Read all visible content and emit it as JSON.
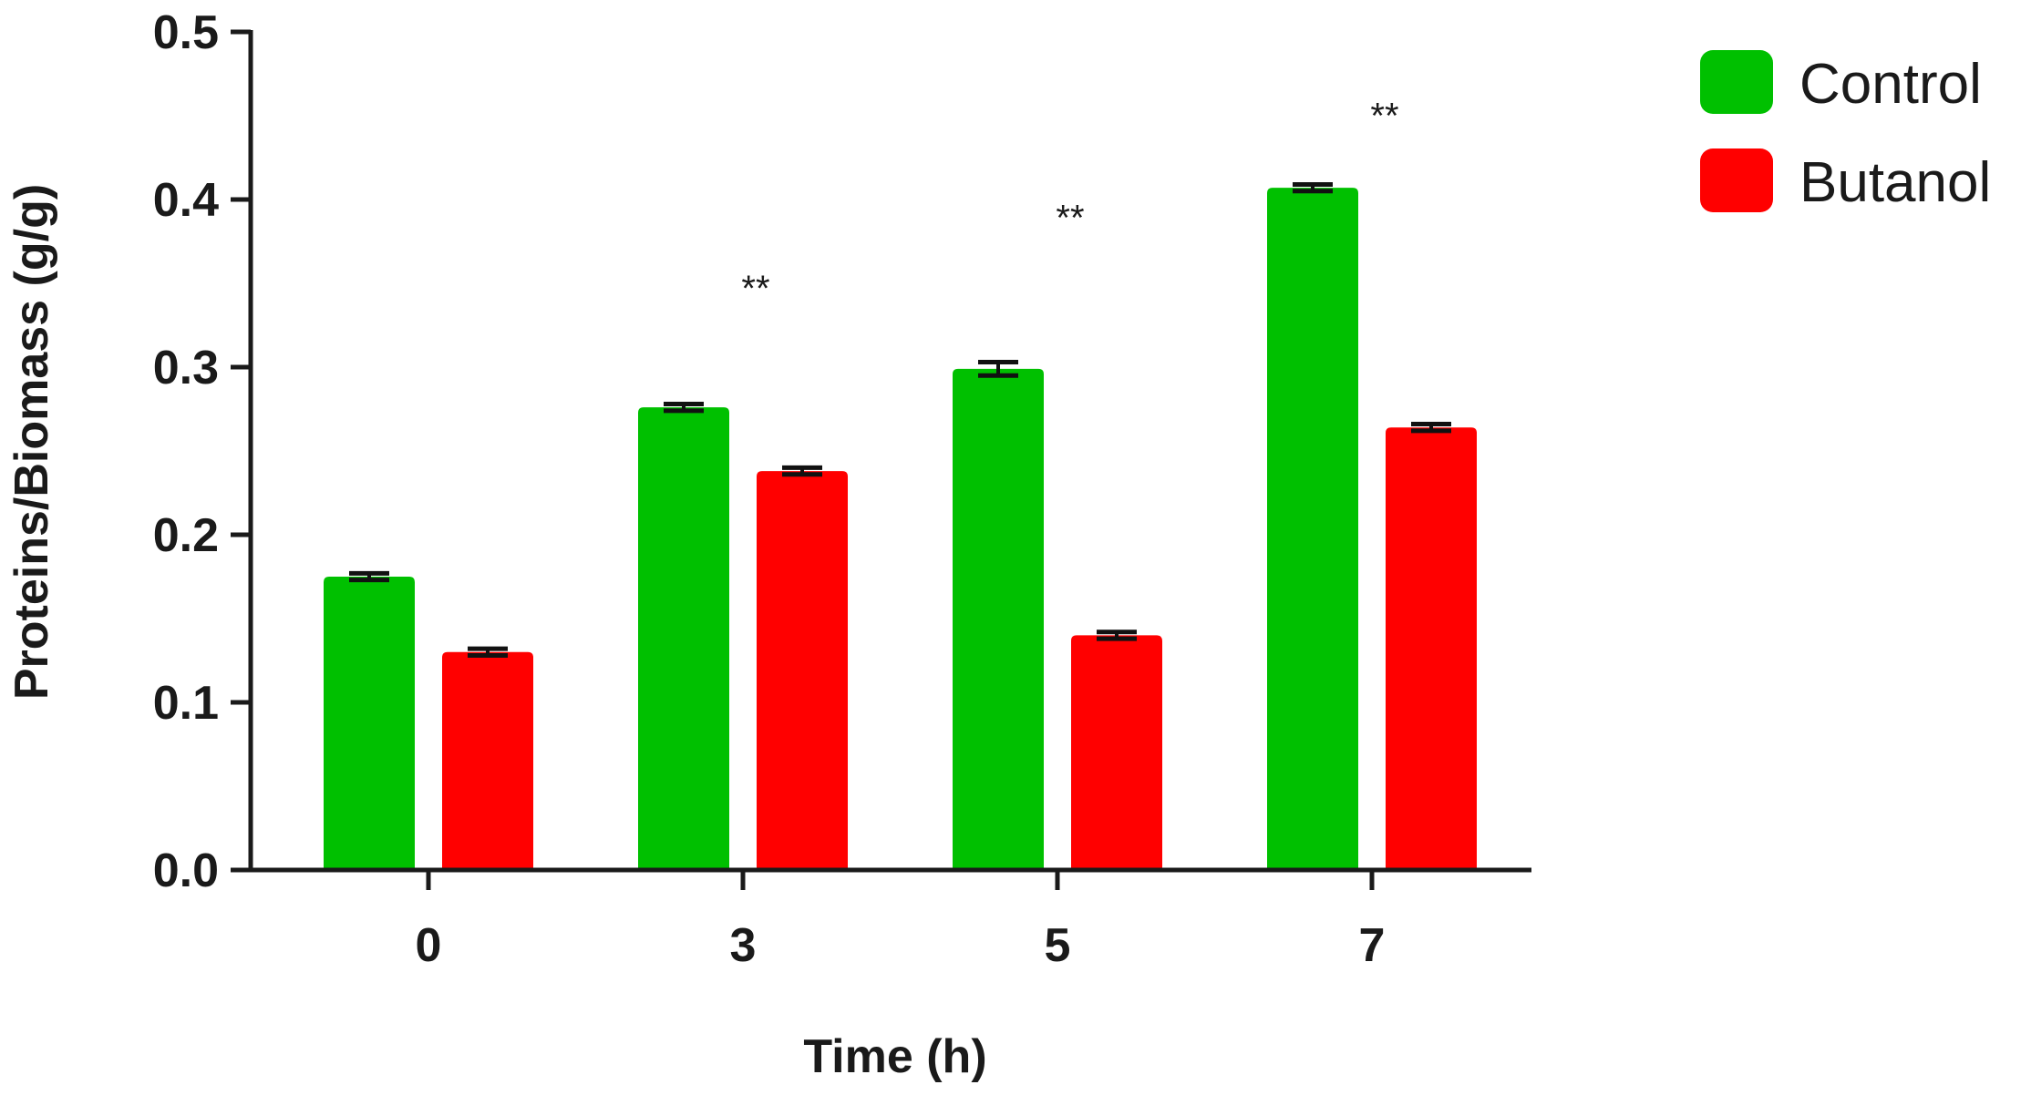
{
  "chart_data": {
    "type": "bar",
    "title": "",
    "xlabel": "Time (h)",
    "ylabel": "Proteins/Biomass (g/g)",
    "categories": [
      "0",
      "3",
      "5",
      "7"
    ],
    "ylim": [
      0,
      0.5
    ],
    "yticks": [
      "0.0",
      "0.1",
      "0.2",
      "0.3",
      "0.4",
      "0.5"
    ],
    "series": [
      {
        "name": "Control",
        "color": "#00c000",
        "values": [
          0.175,
          0.276,
          0.299,
          0.407
        ],
        "errors": [
          0.002,
          0.002,
          0.004,
          0.002
        ]
      },
      {
        "name": "Butanol",
        "color": "#ff0000",
        "values": [
          0.13,
          0.238,
          0.14,
          0.264
        ],
        "errors": [
          0.002,
          0.002,
          0.002,
          0.002
        ]
      }
    ],
    "annotations": [
      {
        "category": "3",
        "text": "**",
        "y": 0.355
      },
      {
        "category": "5",
        "text": "**",
        "y": 0.397
      },
      {
        "category": "7",
        "text": "**",
        "y": 0.458
      }
    ],
    "legend_position": "top-right",
    "grid": false
  }
}
